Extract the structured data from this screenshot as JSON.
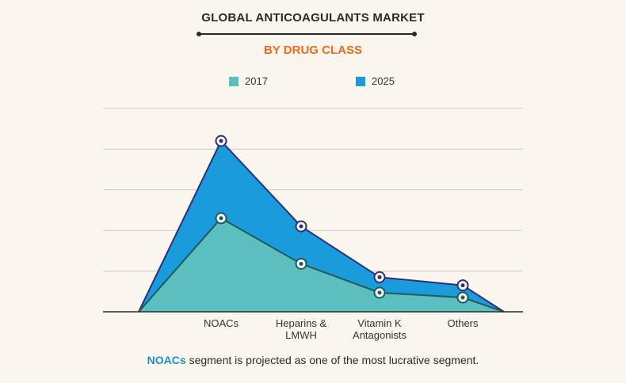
{
  "title": "GLOBAL ANTICOAGULANTS MARKET",
  "subtitle": "BY DRUG CLASS",
  "colors": {
    "background": "#fbf6ee",
    "title": "#2a2a2a",
    "subtitle": "#ea6a1f",
    "series_2017": "#5bbfbf",
    "series_2025": "#1a9bdc",
    "marker_2017": "#1f5b5b",
    "marker_2025": "#2c2f7a",
    "highlight": "#1a8fd6"
  },
  "footer": {
    "highlight": "NOACs",
    "text": " segment is projected as one of the most lucrative segment."
  },
  "chart_data": {
    "type": "area",
    "title": "GLOBAL ANTICOAGULANTS MARKET",
    "subtitle": "BY DRUG CLASS",
    "categories": [
      "NOACs",
      "Heparins & LMWH",
      "Vitamin K Antagonists",
      "Others"
    ],
    "category_labels": [
      "NOACs",
      "Heparins &\nLMWH",
      "Vitamin K\nAntagonists",
      "Others"
    ],
    "series": [
      {
        "name": "2017",
        "values": [
          2.3,
          1.18,
          0.47,
          0.35
        ]
      },
      {
        "name": "2025",
        "values": [
          4.2,
          2.1,
          0.85,
          0.65
        ]
      }
    ],
    "ylim": [
      0,
      5
    ],
    "y_ticks": [
      0,
      1,
      2,
      3,
      4,
      5
    ],
    "show_y_tick_labels": false,
    "grid": true,
    "legend_position": "top-center",
    "xlabel": "",
    "ylabel": ""
  }
}
